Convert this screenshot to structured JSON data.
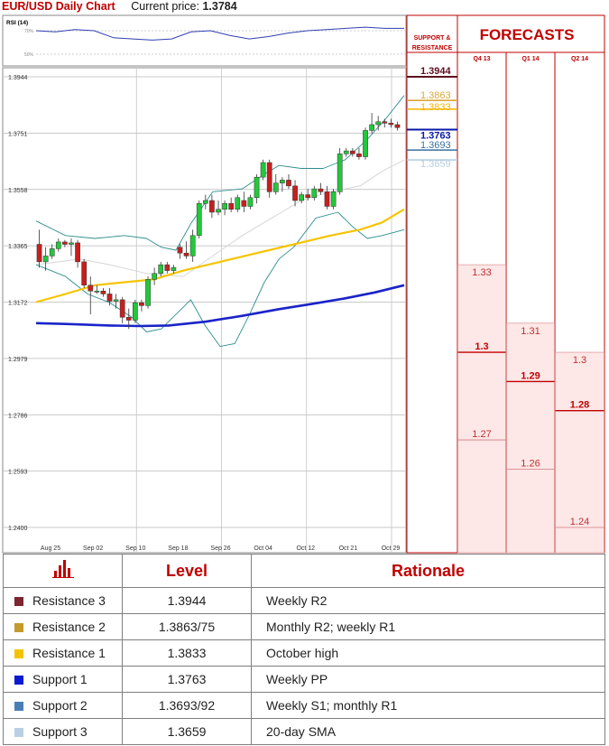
{
  "header": {
    "title": "EUR/USD Daily Chart",
    "price_label": "Current price:",
    "price_value": "1.3784"
  },
  "chart_data": [
    {
      "type": "candlestick",
      "title": "EUR/USD Daily Chart",
      "ylim": [
        1.24,
        1.3944
      ],
      "y_ticks": [
        "1.3944",
        "1.3751",
        "1.3558",
        "1.3365",
        "1.3172",
        "1.2979",
        "1.2786",
        "1.2593",
        "1.2400"
      ],
      "x_ticks": [
        "Aug 25",
        "Sep 02",
        "Sep 10",
        "Sep 18",
        "Sep 26",
        "Oct 04",
        "Oct 12",
        "Oct 21",
        "Oct 29"
      ],
      "grid": true,
      "colors": {
        "up": "#22c83a",
        "down": "#c81e1e",
        "sma_fast": "#f5c400",
        "sma_slow": "#1a24c8",
        "bands": "#2e8e8e",
        "sma20": "#d6d6d6"
      },
      "candles": [
        {
          "o": 1.337,
          "h": 1.342,
          "l": 1.329,
          "c": 1.331
        },
        {
          "o": 1.331,
          "h": 1.336,
          "l": 1.328,
          "c": 1.333
        },
        {
          "o": 1.333,
          "h": 1.337,
          "l": 1.332,
          "c": 1.3355
        },
        {
          "o": 1.3355,
          "h": 1.339,
          "l": 1.3345,
          "c": 1.3378
        },
        {
          "o": 1.3378,
          "h": 1.3385,
          "l": 1.336,
          "c": 1.337
        },
        {
          "o": 1.337,
          "h": 1.339,
          "l": 1.333,
          "c": 1.3375
        },
        {
          "o": 1.3375,
          "h": 1.3385,
          "l": 1.329,
          "c": 1.331
        },
        {
          "o": 1.331,
          "h": 1.332,
          "l": 1.322,
          "c": 1.323
        },
        {
          "o": 1.323,
          "h": 1.326,
          "l": 1.313,
          "c": 1.321
        },
        {
          "o": 1.321,
          "h": 1.323,
          "l": 1.32,
          "c": 1.321
        },
        {
          "o": 1.321,
          "h": 1.322,
          "l": 1.319,
          "c": 1.32
        },
        {
          "o": 1.32,
          "h": 1.322,
          "l": 1.316,
          "c": 1.3175
        },
        {
          "o": 1.3175,
          "h": 1.32,
          "l": 1.315,
          "c": 1.318
        },
        {
          "o": 1.318,
          "h": 1.319,
          "l": 1.31,
          "c": 1.312
        },
        {
          "o": 1.312,
          "h": 1.315,
          "l": 1.308,
          "c": 1.311
        },
        {
          "o": 1.311,
          "h": 1.318,
          "l": 1.31,
          "c": 1.317
        },
        {
          "o": 1.317,
          "h": 1.318,
          "l": 1.314,
          "c": 1.316
        },
        {
          "o": 1.316,
          "h": 1.326,
          "l": 1.315,
          "c": 1.325
        },
        {
          "o": 1.325,
          "h": 1.329,
          "l": 1.323,
          "c": 1.327
        },
        {
          "o": 1.327,
          "h": 1.331,
          "l": 1.326,
          "c": 1.33
        },
        {
          "o": 1.33,
          "h": 1.331,
          "l": 1.327,
          "c": 1.328
        },
        {
          "o": 1.328,
          "h": 1.33,
          "l": 1.327,
          "c": 1.329
        },
        {
          "o": 1.336,
          "h": 1.337,
          "l": 1.332,
          "c": 1.334
        },
        {
          "o": 1.334,
          "h": 1.338,
          "l": 1.332,
          "c": 1.333
        },
        {
          "o": 1.333,
          "h": 1.342,
          "l": 1.331,
          "c": 1.34
        },
        {
          "o": 1.34,
          "h": 1.352,
          "l": 1.339,
          "c": 1.351
        },
        {
          "o": 1.351,
          "h": 1.354,
          "l": 1.349,
          "c": 1.352
        },
        {
          "o": 1.352,
          "h": 1.354,
          "l": 1.346,
          "c": 1.348
        },
        {
          "o": 1.348,
          "h": 1.352,
          "l": 1.347,
          "c": 1.349
        },
        {
          "o": 1.349,
          "h": 1.352,
          "l": 1.347,
          "c": 1.351
        },
        {
          "o": 1.351,
          "h": 1.353,
          "l": 1.348,
          "c": 1.349
        },
        {
          "o": 1.349,
          "h": 1.354,
          "l": 1.348,
          "c": 1.353
        },
        {
          "o": 1.352,
          "h": 1.355,
          "l": 1.348,
          "c": 1.35
        },
        {
          "o": 1.35,
          "h": 1.354,
          "l": 1.349,
          "c": 1.353
        },
        {
          "o": 1.353,
          "h": 1.361,
          "l": 1.351,
          "c": 1.36
        },
        {
          "o": 1.36,
          "h": 1.366,
          "l": 1.359,
          "c": 1.365
        },
        {
          "o": 1.365,
          "h": 1.366,
          "l": 1.353,
          "c": 1.355
        },
        {
          "o": 1.355,
          "h": 1.361,
          "l": 1.354,
          "c": 1.358
        },
        {
          "o": 1.358,
          "h": 1.36,
          "l": 1.355,
          "c": 1.359
        },
        {
          "o": 1.359,
          "h": 1.361,
          "l": 1.356,
          "c": 1.357
        },
        {
          "o": 1.357,
          "h": 1.359,
          "l": 1.35,
          "c": 1.352
        },
        {
          "o": 1.352,
          "h": 1.355,
          "l": 1.351,
          "c": 1.354
        },
        {
          "o": 1.354,
          "h": 1.356,
          "l": 1.352,
          "c": 1.353
        },
        {
          "o": 1.353,
          "h": 1.357,
          "l": 1.352,
          "c": 1.356
        },
        {
          "o": 1.356,
          "h": 1.358,
          "l": 1.354,
          "c": 1.355
        },
        {
          "o": 1.355,
          "h": 1.357,
          "l": 1.349,
          "c": 1.35
        },
        {
          "o": 1.35,
          "h": 1.356,
          "l": 1.349,
          "c": 1.355
        },
        {
          "o": 1.355,
          "h": 1.37,
          "l": 1.354,
          "c": 1.368
        },
        {
          "o": 1.368,
          "h": 1.37,
          "l": 1.367,
          "c": 1.369
        },
        {
          "o": 1.369,
          "h": 1.37,
          "l": 1.367,
          "c": 1.368
        },
        {
          "o": 1.368,
          "h": 1.37,
          "l": 1.366,
          "c": 1.367
        },
        {
          "o": 1.367,
          "h": 1.377,
          "l": 1.366,
          "c": 1.376
        },
        {
          "o": 1.376,
          "h": 1.382,
          "l": 1.375,
          "c": 1.378
        },
        {
          "o": 1.378,
          "h": 1.381,
          "l": 1.376,
          "c": 1.379
        },
        {
          "o": 1.379,
          "h": 1.38,
          "l": 1.377,
          "c": 1.3785
        },
        {
          "o": 1.3785,
          "h": 1.38,
          "l": 1.377,
          "c": 1.378
        },
        {
          "o": 1.378,
          "h": 1.379,
          "l": 1.376,
          "c": 1.377
        }
      ],
      "sma_fast": [
        [
          0,
          1.3172
        ],
        [
          0.08,
          1.32
        ],
        [
          0.16,
          1.323
        ],
        [
          0.24,
          1.324
        ],
        [
          0.32,
          1.325
        ],
        [
          0.4,
          1.328
        ],
        [
          0.5,
          1.331
        ],
        [
          0.6,
          1.334
        ],
        [
          0.7,
          1.337
        ],
        [
          0.8,
          1.34
        ],
        [
          0.88,
          1.342
        ],
        [
          0.94,
          1.3445
        ],
        [
          1.0,
          1.349
        ]
      ],
      "sma_slow": [
        [
          0,
          1.31
        ],
        [
          0.08,
          1.3097
        ],
        [
          0.2,
          1.3092
        ],
        [
          0.28,
          1.309
        ],
        [
          0.36,
          1.3092
        ],
        [
          0.46,
          1.3105
        ],
        [
          0.56,
          1.3125
        ],
        [
          0.66,
          1.3148
        ],
        [
          0.76,
          1.3168
        ],
        [
          0.84,
          1.3185
        ],
        [
          0.92,
          1.3205
        ],
        [
          1.0,
          1.323
        ]
      ],
      "band_upper": [
        [
          0,
          1.345
        ],
        [
          0.08,
          1.34
        ],
        [
          0.16,
          1.339
        ],
        [
          0.24,
          1.34
        ],
        [
          0.3,
          1.339
        ],
        [
          0.34,
          1.336
        ],
        [
          0.38,
          1.335
        ],
        [
          0.42,
          1.344
        ],
        [
          0.48,
          1.355
        ],
        [
          0.56,
          1.356
        ],
        [
          0.62,
          1.361
        ],
        [
          0.66,
          1.364
        ],
        [
          0.72,
          1.363
        ],
        [
          0.78,
          1.363
        ],
        [
          0.84,
          1.366
        ],
        [
          0.9,
          1.373
        ],
        [
          0.95,
          1.38
        ],
        [
          1.0,
          1.388
        ]
      ],
      "band_lower": [
        [
          0,
          1.33
        ],
        [
          0.08,
          1.326
        ],
        [
          0.14,
          1.32
        ],
        [
          0.2,
          1.317
        ],
        [
          0.26,
          1.312
        ],
        [
          0.3,
          1.307
        ],
        [
          0.34,
          1.308
        ],
        [
          0.38,
          1.313
        ],
        [
          0.42,
          1.318
        ],
        [
          0.46,
          1.309
        ],
        [
          0.5,
          1.302
        ],
        [
          0.54,
          1.303
        ],
        [
          0.58,
          1.313
        ],
        [
          0.62,
          1.324
        ],
        [
          0.66,
          1.332
        ],
        [
          0.7,
          1.336
        ],
        [
          0.76,
          1.346
        ],
        [
          0.82,
          1.348
        ],
        [
          0.86,
          1.343
        ],
        [
          0.9,
          1.339
        ],
        [
          0.94,
          1.34
        ],
        [
          1.0,
          1.342
        ]
      ],
      "sma20": [
        [
          0,
          1.33
        ],
        [
          0.12,
          1.332
        ],
        [
          0.2,
          1.33
        ],
        [
          0.3,
          1.327
        ],
        [
          0.4,
          1.326
        ],
        [
          0.48,
          1.333
        ],
        [
          0.56,
          1.34
        ],
        [
          0.64,
          1.346
        ],
        [
          0.72,
          1.352
        ],
        [
          0.8,
          1.355
        ],
        [
          0.88,
          1.357
        ],
        [
          0.94,
          1.362
        ],
        [
          1.0,
          1.3659
        ]
      ]
    },
    {
      "type": "line",
      "title": "RSI (14)",
      "y_ticks": [
        "70%",
        "50%"
      ],
      "ylim": [
        40,
        80
      ],
      "values": [
        70,
        69,
        71,
        70,
        64,
        63,
        62,
        63,
        69,
        70,
        66,
        63,
        65,
        68,
        70,
        71,
        72,
        73,
        72,
        72
      ]
    },
    {
      "type": "bar",
      "title": "FORECASTS",
      "categories": [
        "Q4 13",
        "Q1 14",
        "Q2 14"
      ],
      "ylim": [
        1.24,
        1.3944
      ],
      "series": [
        {
          "name": "",
          "values": [
            1.33,
            1.31,
            1.3
          ]
        },
        {
          "name": "",
          "values": [
            1.3,
            1.29,
            1.28
          ]
        },
        {
          "name": "",
          "values": [
            1.27,
            1.26,
            1.24
          ]
        }
      ],
      "labels": [
        [
          "1.33",
          "1.3",
          "1.27"
        ],
        [
          "1.31",
          "1.29",
          "1.26"
        ],
        [
          "1.3",
          "1.28",
          "1.24"
        ]
      ]
    }
  ],
  "support_panel": {
    "title_line1": "SUPPORT &",
    "title_line2": "RESISTANCE",
    "levels": [
      {
        "label": "1.3944",
        "value": 1.3944,
        "color": "#5c0d1e",
        "bold": true
      },
      {
        "label": "1.3863",
        "value": 1.3863,
        "color": "#d9a93e",
        "bold": false
      },
      {
        "label": "1.3833",
        "value": 1.3833,
        "color": "#f4b400",
        "bold": false
      },
      {
        "label": "1.3763",
        "value": 1.3763,
        "color": "#0a1aa6",
        "bold": true
      },
      {
        "label": "1.3693",
        "value": 1.3693,
        "color": "#3a6f9e",
        "bold": false
      },
      {
        "label": "1.3659",
        "value": 1.3659,
        "color": "#b5cfe0",
        "bold": false
      }
    ]
  },
  "table": {
    "col_level": "Level",
    "col_rationale": "Rationale",
    "icon": "bar-chart-icon",
    "rows": [
      {
        "name": "Resistance 3",
        "level": "1.3944",
        "rationale": "Weekly R2",
        "color": "#7b2630"
      },
      {
        "name": "Resistance 2",
        "level": "1.3863/75",
        "rationale": "Monthly R2; weekly R1",
        "color": "#c49a2e"
      },
      {
        "name": "Resistance 1",
        "level": "1.3833",
        "rationale": "October high",
        "color": "#f4c300"
      },
      {
        "name": "Support 1",
        "level": "1.3763",
        "rationale": "Weekly PP",
        "color": "#0a1ad0"
      },
      {
        "name": "Support 2",
        "level": "1.3693/92",
        "rationale": "Weekly S1; monthly R1",
        "color": "#4a7fb5"
      },
      {
        "name": "Support 3",
        "level": "1.3659",
        "rationale": "20-day SMA",
        "color": "#b8d0e6"
      }
    ]
  }
}
